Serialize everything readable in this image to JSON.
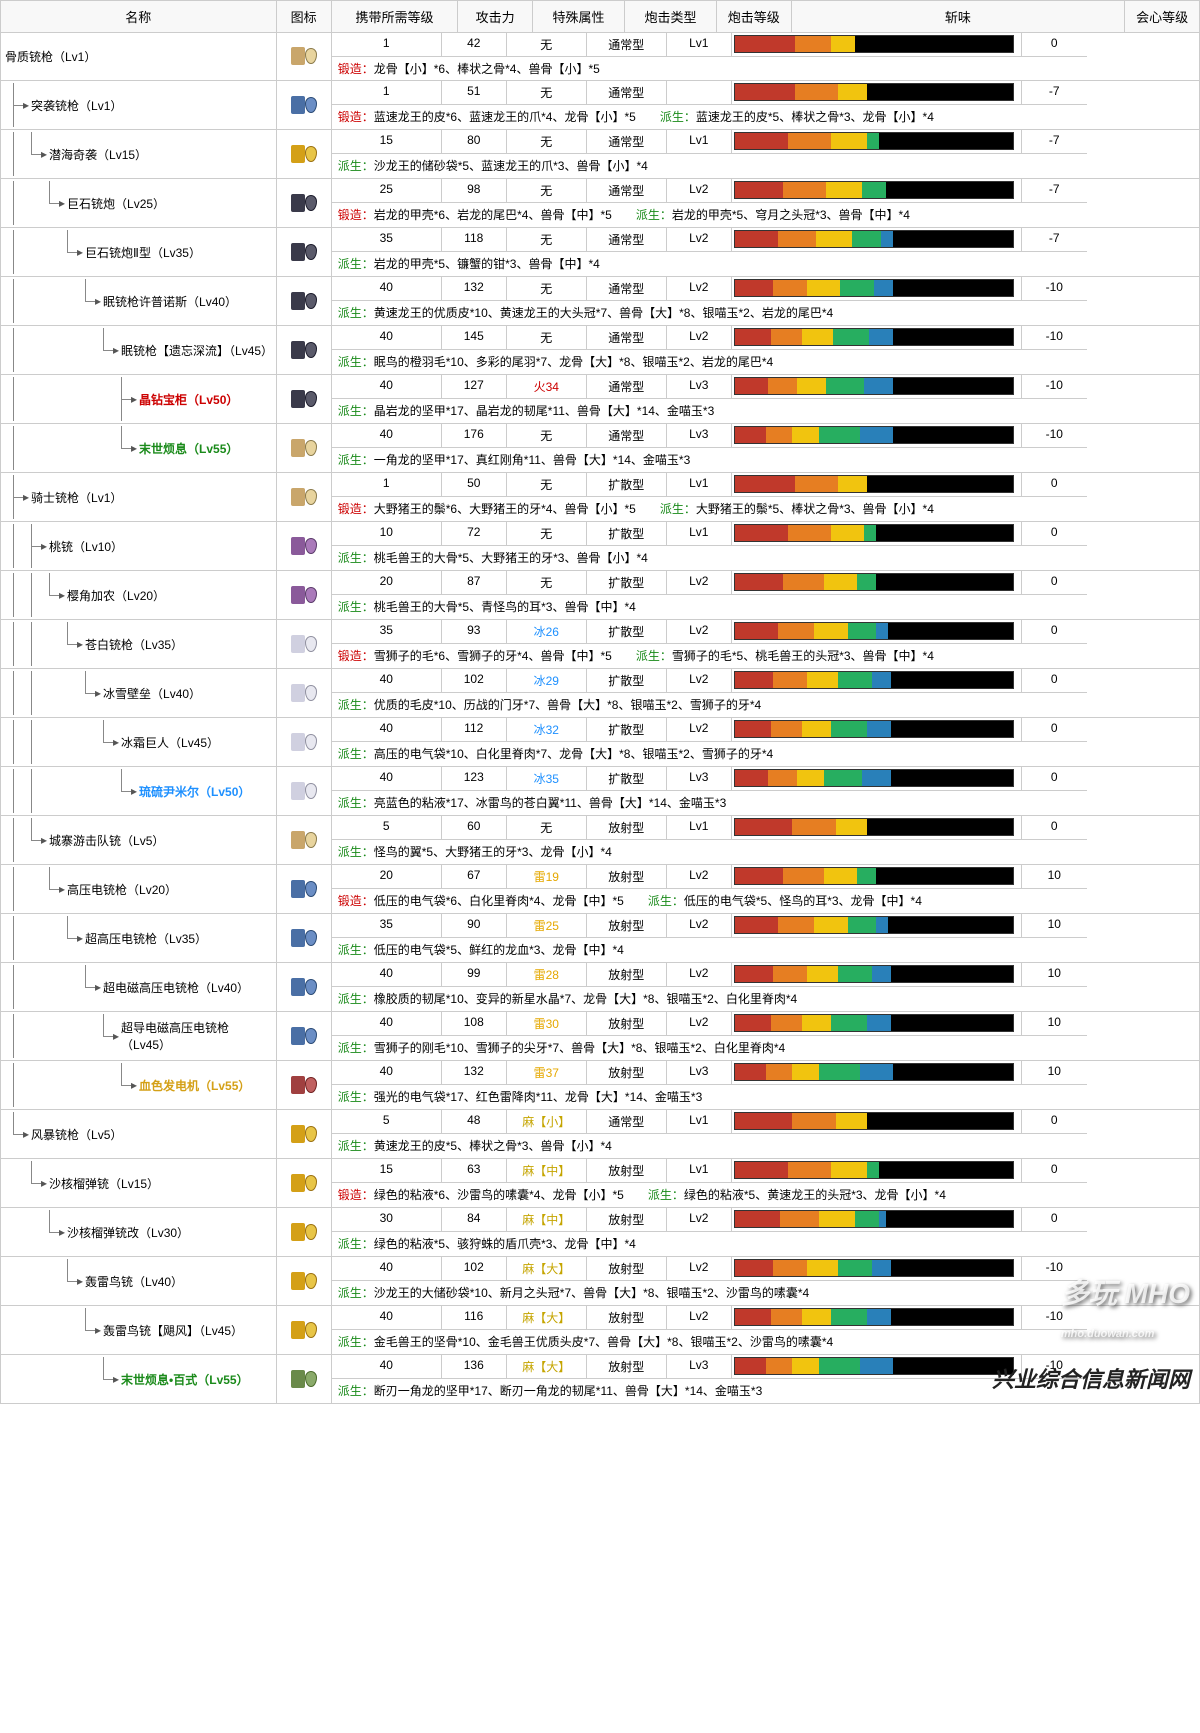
{
  "headers": {
    "name": "名称",
    "icon": "图标",
    "carry_lvl": "携带所需等级",
    "atk": "攻击力",
    "element": "特殊属性",
    "shell_type": "炮击类型",
    "shell_lvl": "炮击等级",
    "sharpness": "斩味",
    "affinity": "会心等级"
  },
  "labels": {
    "forge": "锻造：",
    "upgrade": "派生：",
    "none": "无"
  },
  "elements": {
    "fire": "火",
    "ice": "冰",
    "thunder": "雷",
    "para": "麻"
  },
  "shells": {
    "normal": "通常型",
    "wide": "扩散型",
    "long": "放射型"
  },
  "watermark1": "多玩 MHO",
  "watermark1_sub": "mho.duowan.com",
  "watermark2": "兴业综合信息新闻网",
  "weapons": [
    {
      "id": 0,
      "name": "骨质铳枪（Lv1）",
      "depth": 0,
      "branch": "",
      "iconColor": "c-bone",
      "carry": 1,
      "atk": 42,
      "elem": "",
      "elemVal": "",
      "shell": "normal",
      "shlvl": "Lv1",
      "aff": 0,
      "sharp": [
        25,
        15,
        10,
        0,
        0,
        0
      ],
      "forge": "龙骨【小】*6、棒状之骨*4、兽骨【小】*5",
      "upgrade": ""
    },
    {
      "id": 1,
      "name": "突袭铳枪（Lv1）",
      "depth": 1,
      "branch": "t",
      "iconColor": "c-blue",
      "carry": 1,
      "atk": 51,
      "elem": "",
      "elemVal": "",
      "shell": "normal",
      "shlvl": "",
      "aff": -7,
      "sharp": [
        25,
        18,
        12,
        0,
        0,
        0
      ],
      "forge": "蓝速龙王的皮*6、蓝速龙王的爪*4、龙骨【小】*5",
      "upgrade": "蓝速龙王的皮*5、棒状之骨*3、龙骨【小】*4"
    },
    {
      "id": 2,
      "name": "潜海奇袭（Lv15）",
      "depth": 2,
      "branch": "vl",
      "iconColor": "c-gold",
      "carry": 15,
      "atk": 80,
      "elem": "",
      "elemVal": "",
      "shell": "normal",
      "shlvl": "Lv1",
      "aff": -7,
      "sharp": [
        22,
        18,
        15,
        5,
        0,
        0
      ],
      "forge": "",
      "upgrade": "沙龙王的储砂袋*5、蓝速龙王的爪*3、兽骨【小】*4"
    },
    {
      "id": 3,
      "name": "巨石铳炮（Lv25）",
      "depth": 3,
      "branch": "v l",
      "iconColor": "c-dark",
      "carry": 25,
      "atk": 98,
      "elem": "",
      "elemVal": "",
      "shell": "normal",
      "shlvl": "Lv2",
      "aff": -7,
      "sharp": [
        20,
        18,
        15,
        10,
        0,
        0
      ],
      "forge": "岩龙的甲壳*6、岩龙的尾巴*4、兽骨【中】*5",
      "upgrade": "岩龙的甲壳*5、穹月之头冠*3、兽骨【中】*4"
    },
    {
      "id": 4,
      "name": "巨石铳炮Ⅱ型（Lv35）",
      "depth": 4,
      "branch": "v  l",
      "iconColor": "c-dark",
      "carry": 35,
      "atk": 118,
      "elem": "",
      "elemVal": "",
      "shell": "normal",
      "shlvl": "Lv2",
      "aff": -7,
      "sharp": [
        18,
        16,
        15,
        12,
        5,
        0
      ],
      "forge": "",
      "upgrade": "岩龙的甲壳*5、镰蟹的钳*3、兽骨【中】*4"
    },
    {
      "id": 5,
      "name": "眠铳枪许普诺斯（Lv40）",
      "depth": 5,
      "branch": "v   l",
      "iconColor": "c-dark",
      "carry": 40,
      "atk": 132,
      "elem": "",
      "elemVal": "",
      "shell": "normal",
      "shlvl": "Lv2",
      "aff": -10,
      "sharp": [
        16,
        14,
        14,
        14,
        8,
        0
      ],
      "forge": "",
      "upgrade": "黄速龙王的优质皮*10、黄速龙王的大头冠*7、兽骨【大】*8、银喵玉*2、岩龙的尾巴*4"
    },
    {
      "id": 6,
      "name": "眠铳枪【遗忘深流】（Lv45）",
      "depth": 6,
      "branch": "v    l",
      "iconColor": "c-dark",
      "carry": 40,
      "atk": 145,
      "elem": "",
      "elemVal": "",
      "shell": "normal",
      "shlvl": "Lv2",
      "aff": -10,
      "sharp": [
        15,
        13,
        13,
        15,
        10,
        0
      ],
      "forge": "",
      "upgrade": "眠鸟的橙羽毛*10、多彩的尾羽*7、龙骨【大】*8、银喵玉*2、岩龙的尾巴*4"
    },
    {
      "id": 7,
      "name": "晶钻宝柜（Lv50）",
      "nameClass": "name-rare-red",
      "depth": 7,
      "branch": "v     t",
      "iconColor": "c-dark",
      "carry": 40,
      "atk": 127,
      "elem": "fire",
      "elemVal": "34",
      "shell": "normal",
      "shlvl": "Lv3",
      "aff": -10,
      "sharp": [
        14,
        12,
        12,
        16,
        12,
        0
      ],
      "forge": "",
      "upgrade": "晶岩龙的坚甲*17、晶岩龙的韧尾*11、兽骨【大】*14、金喵玉*3"
    },
    {
      "id": 8,
      "name": "末世烦息（Lv55）",
      "nameClass": "name-rare-green",
      "depth": 7,
      "branch": "v     l",
      "iconColor": "c-bone",
      "carry": 40,
      "atk": 176,
      "elem": "",
      "elemVal": "",
      "shell": "normal",
      "shlvl": "Lv3",
      "aff": -10,
      "sharp": [
        13,
        11,
        11,
        17,
        14,
        0
      ],
      "forge": "",
      "upgrade": "一角龙的坚甲*17、真红刚角*11、兽骨【大】*14、金喵玉*3"
    },
    {
      "id": 9,
      "name": "骑士铳枪（Lv1）",
      "depth": 1,
      "branch": "t",
      "iconColor": "c-bone",
      "carry": 1,
      "atk": 50,
      "elem": "",
      "elemVal": "",
      "shell": "wide",
      "shlvl": "Lv1",
      "aff": 0,
      "sharp": [
        25,
        18,
        12,
        0,
        0,
        0
      ],
      "forge": "大野猪王的鬃*6、大野猪王的牙*4、兽骨【小】*5",
      "upgrade": "大野猪王的鬃*5、棒状之骨*3、兽骨【小】*4"
    },
    {
      "id": 10,
      "name": "桃铳（Lv10）",
      "depth": 2,
      "branch": "vt",
      "iconColor": "c-purple",
      "carry": 10,
      "atk": 72,
      "elem": "",
      "elemVal": "",
      "shell": "wide",
      "shlvl": "Lv1",
      "aff": 0,
      "sharp": [
        22,
        18,
        14,
        5,
        0,
        0
      ],
      "forge": "",
      "upgrade": "桃毛兽王的大骨*5、大野猪王的牙*3、兽骨【小】*4"
    },
    {
      "id": 11,
      "name": "樱角加农（Lv20）",
      "depth": 3,
      "branch": "vvl",
      "iconColor": "c-purple",
      "carry": 20,
      "atk": 87,
      "elem": "",
      "elemVal": "",
      "shell": "wide",
      "shlvl": "Lv2",
      "aff": 0,
      "sharp": [
        20,
        17,
        14,
        8,
        0,
        0
      ],
      "forge": "",
      "upgrade": "桃毛兽王的大骨*5、青怪鸟的耳*3、兽骨【中】*4"
    },
    {
      "id": 12,
      "name": "苍白铳枪（Lv35）",
      "depth": 4,
      "branch": "vv l",
      "iconColor": "c-white",
      "carry": 35,
      "atk": 93,
      "elem": "ice",
      "elemVal": "26",
      "shell": "wide",
      "shlvl": "Lv2",
      "aff": 0,
      "sharp": [
        18,
        15,
        14,
        12,
        5,
        0
      ],
      "forge": "雪狮子的毛*6、雪狮子的牙*4、兽骨【中】*5",
      "upgrade": "雪狮子的毛*5、桃毛兽王的头冠*3、兽骨【中】*4"
    },
    {
      "id": 13,
      "name": "冰雪壁垒（Lv40）",
      "depth": 5,
      "branch": "vv  l",
      "iconColor": "c-white",
      "carry": 40,
      "atk": 102,
      "elem": "ice",
      "elemVal": "29",
      "shell": "wide",
      "shlvl": "Lv2",
      "aff": 0,
      "sharp": [
        16,
        14,
        13,
        14,
        8,
        0
      ],
      "forge": "",
      "upgrade": "优质的毛皮*10、历战的门牙*7、兽骨【大】*8、银喵玉*2、雪狮子的牙*4"
    },
    {
      "id": 14,
      "name": "冰霜巨人（Lv45）",
      "depth": 6,
      "branch": "vv   l",
      "iconColor": "c-white",
      "carry": 40,
      "atk": 112,
      "elem": "ice",
      "elemVal": "32",
      "shell": "wide",
      "shlvl": "Lv2",
      "aff": 0,
      "sharp": [
        15,
        13,
        12,
        15,
        10,
        0
      ],
      "forge": "",
      "upgrade": "高压的电气袋*10、白化里脊肉*7、龙骨【大】*8、银喵玉*2、雪狮子的牙*4"
    },
    {
      "id": 15,
      "name": "琉硫尹米尔（Lv50）",
      "nameClass": "name-rare3",
      "depth": 7,
      "branch": "vv    l",
      "iconColor": "c-white",
      "carry": 40,
      "atk": 123,
      "elem": "ice",
      "elemVal": "35",
      "shell": "wide",
      "shlvl": "Lv3",
      "aff": 0,
      "sharp": [
        14,
        12,
        11,
        16,
        12,
        0
      ],
      "forge": "",
      "upgrade": "亮蓝色的粘液*17、冰雷鸟的苍白翼*11、兽骨【大】*14、金喵玉*3"
    },
    {
      "id": 16,
      "name": "城寨游击队铳（Lv5）",
      "depth": 2,
      "branch": "vl",
      "iconColor": "c-bone",
      "carry": 5,
      "atk": 60,
      "elem": "",
      "elemVal": "",
      "shell": "long",
      "shlvl": "Lv1",
      "aff": 0,
      "sharp": [
        24,
        18,
        13,
        0,
        0,
        0
      ],
      "forge": "",
      "upgrade": "怪鸟的翼*5、大野猪王的牙*3、龙骨【小】*4"
    },
    {
      "id": 17,
      "name": "高压电铳枪（Lv20）",
      "depth": 3,
      "branch": "v l",
      "iconColor": "c-blue",
      "carry": 20,
      "atk": 67,
      "elem": "thunder",
      "elemVal": "19",
      "shell": "long",
      "shlvl": "Lv2",
      "aff": 10,
      "sharp": [
        20,
        17,
        14,
        8,
        0,
        0
      ],
      "forge": "低压的电气袋*6、白化里脊肉*4、龙骨【中】*5",
      "upgrade": "低压的电气袋*5、怪鸟的耳*3、龙骨【中】*4"
    },
    {
      "id": 18,
      "name": "超高压电铳枪（Lv35）",
      "depth": 4,
      "branch": "v  l",
      "iconColor": "c-blue",
      "carry": 35,
      "atk": 90,
      "elem": "thunder",
      "elemVal": "25",
      "shell": "long",
      "shlvl": "Lv2",
      "aff": 10,
      "sharp": [
        18,
        15,
        14,
        12,
        5,
        0
      ],
      "forge": "",
      "upgrade": "低压的电气袋*5、鲜红的龙血*3、龙骨【中】*4"
    },
    {
      "id": 19,
      "name": "超电磁高压电铳枪（Lv40）",
      "depth": 5,
      "branch": "v   l",
      "iconColor": "c-blue",
      "carry": 40,
      "atk": 99,
      "elem": "thunder",
      "elemVal": "28",
      "shell": "long",
      "shlvl": "Lv2",
      "aff": 10,
      "sharp": [
        16,
        14,
        13,
        14,
        8,
        0
      ],
      "forge": "",
      "upgrade": "橡胶质的韧尾*10、变异的新星水晶*7、龙骨【大】*8、银喵玉*2、白化里脊肉*4"
    },
    {
      "id": 20,
      "name": "超导电磁高压电铳枪（Lv45）",
      "depth": 6,
      "branch": "v    l",
      "iconColor": "c-blue",
      "carry": 40,
      "atk": 108,
      "elem": "thunder",
      "elemVal": "30",
      "shell": "long",
      "shlvl": "Lv2",
      "aff": 10,
      "sharp": [
        15,
        13,
        12,
        15,
        10,
        0
      ],
      "forge": "",
      "upgrade": "雪狮子的刚毛*10、雪狮子的尖牙*7、兽骨【大】*8、银喵玉*2、白化里脊肉*4"
    },
    {
      "id": 21,
      "name": "血色发电机（Lv55）",
      "nameClass": "name-rare-gold",
      "depth": 7,
      "branch": "v     l",
      "iconColor": "c-red",
      "carry": 40,
      "atk": 132,
      "elem": "thunder",
      "elemVal": "37",
      "shell": "long",
      "shlvl": "Lv3",
      "aff": 10,
      "sharp": [
        13,
        11,
        11,
        17,
        14,
        0
      ],
      "forge": "",
      "upgrade": "强光的电气袋*17、红色雷降肉*11、龙骨【大】*14、金喵玉*3"
    },
    {
      "id": 22,
      "name": "风暴铳枪（Lv5）",
      "depth": 1,
      "branch": "l",
      "iconColor": "c-gold",
      "carry": 5,
      "atk": 48,
      "elem": "para",
      "elemVal": "【小】",
      "shell": "normal",
      "shlvl": "Lv1",
      "aff": 0,
      "sharp": [
        24,
        18,
        13,
        0,
        0,
        0
      ],
      "forge": "",
      "upgrade": "黄速龙王的皮*5、棒状之骨*3、兽骨【小】*4"
    },
    {
      "id": 23,
      "name": "沙核榴弹铳（Lv15）",
      "depth": 2,
      "branch": " l",
      "iconColor": "c-gold",
      "carry": 15,
      "atk": 63,
      "elem": "para",
      "elemVal": "【中】",
      "shell": "long",
      "shlvl": "Lv1",
      "aff": 0,
      "sharp": [
        22,
        18,
        15,
        5,
        0,
        0
      ],
      "forge": "绿色的粘液*6、沙雷鸟的嗉囊*4、龙骨【小】*5",
      "upgrade": "绿色的粘液*5、黄速龙王的头冠*3、龙骨【小】*4"
    },
    {
      "id": 24,
      "name": "沙核榴弹铳改（Lv30）",
      "depth": 3,
      "branch": "  l",
      "iconColor": "c-gold",
      "carry": 30,
      "atk": 84,
      "elem": "para",
      "elemVal": "【中】",
      "shell": "long",
      "shlvl": "Lv2",
      "aff": 0,
      "sharp": [
        19,
        16,
        15,
        10,
        3,
        0
      ],
      "forge": "",
      "upgrade": "绿色的粘液*5、骇狩蛛的盾爪壳*3、龙骨【中】*4"
    },
    {
      "id": 25,
      "name": "轰雷鸟铳（Lv40）",
      "depth": 4,
      "branch": "   l",
      "iconColor": "c-gold",
      "carry": 40,
      "atk": 102,
      "elem": "para",
      "elemVal": "【大】",
      "shell": "long",
      "shlvl": "Lv2",
      "aff": -10,
      "sharp": [
        16,
        14,
        13,
        14,
        8,
        0
      ],
      "forge": "",
      "upgrade": "沙龙王的大储砂袋*10、新月之头冠*7、兽骨【大】*8、银喵玉*2、沙雷鸟的嗉囊*4"
    },
    {
      "id": 26,
      "name": "轰雷鸟铳【飓风】（Lv45）",
      "depth": 5,
      "branch": "    l",
      "iconColor": "c-gold",
      "carry": 40,
      "atk": 116,
      "elem": "para",
      "elemVal": "【大】",
      "shell": "long",
      "shlvl": "Lv2",
      "aff": -10,
      "sharp": [
        15,
        13,
        12,
        15,
        10,
        0
      ],
      "forge": "",
      "upgrade": "金毛兽王的坚骨*10、金毛兽王优质头皮*7、兽骨【大】*8、银喵玉*2、沙雷鸟的嗉囊*4"
    },
    {
      "id": 27,
      "name": "末世烦息•百式（Lv55）",
      "nameClass": "name-rare-green",
      "depth": 6,
      "branch": "     l",
      "iconColor": "c-green",
      "carry": 40,
      "atk": 136,
      "elem": "para",
      "elemVal": "【大】",
      "shell": "long",
      "shlvl": "Lv3",
      "aff": -10,
      "sharp": [
        13,
        11,
        11,
        17,
        14,
        0
      ],
      "forge": "",
      "upgrade": "断刃一角龙的坚甲*17、断刃一角龙的韧尾*11、兽骨【大】*14、金喵玉*3"
    }
  ]
}
